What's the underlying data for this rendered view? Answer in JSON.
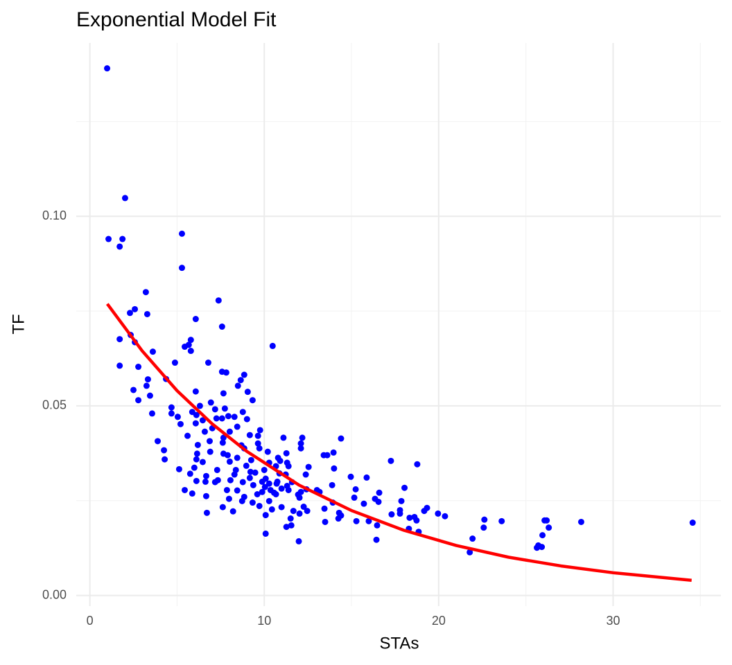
{
  "chart_data": {
    "type": "scatter",
    "title": "Exponential Model Fit",
    "x_label": "STAs",
    "y_label": "TF",
    "xlim": [
      -0.78,
      36.18
    ],
    "ylim": [
      -0.0028,
      0.1457
    ],
    "xticks": [
      0,
      10,
      20,
      30
    ],
    "yticks": [
      {
        "value": 0,
        "label": "0.00"
      },
      {
        "value": 0.05,
        "label": "0.05"
      },
      {
        "value": 0.1,
        "label": "0.10"
      }
    ],
    "x_minor_ticks": [
      5,
      15,
      25,
      35
    ],
    "y_minor_ticks": [
      0.025,
      0.075,
      0.125
    ],
    "grid": true,
    "points": {
      "color": "#0000ff",
      "x": [
        0.99,
        2.02,
        1.07,
        1.87,
        1.71,
        5.28,
        5.28,
        3.21,
        7.38,
        3.29,
        2.3,
        2.58,
        2.34,
        2.58,
        1.71,
        7.58,
        6.07,
        5.79,
        5.67,
        5.44,
        5.79,
        10.48,
        3.61,
        1.71,
        2.78,
        4.88,
        6.79,
        7.58,
        7.82,
        8.85,
        3.33,
        4.37,
        8.65,
        3.25,
        8.49,
        2.5,
        6.07,
        7.66,
        9.05,
        3.45,
        2.78,
        9.33,
        6.94,
        6.31,
        4.68,
        7.18,
        7.74,
        3.57,
        4.68,
        5.87,
        8.77,
        6.11,
        7.94,
        5.04,
        7.26,
        7.58,
        8.29,
        9.01,
        6.47,
        5.2,
        6.07,
        8.45,
        7.02,
        9.76,
        6.59,
        9.17,
        9.64,
        5.6,
        8.02,
        7.66,
        11.1,
        12.18,
        14.4,
        3.89,
        6.87,
        7.62,
        6.19,
        8.69,
        9.64,
        12.1,
        9.72,
        8.85,
        4.25,
        12.1,
        6.9,
        10.2,
        11.27,
        13.97,
        13.41,
        13.61,
        6.15,
        7.66,
        7.9,
        6.11,
        4.29,
        8.45,
        9.25,
        10.79,
        10.91,
        17.26,
        6.47,
        8.02,
        10.28,
        11.31,
        8.97,
        18.77,
        10.67,
        12.54,
        11.39,
        5.99,
        5.12,
        7.3,
        8.37,
        10.0,
        14.0,
        10.87,
        9.48,
        9.21,
        11.23,
        12.38,
        5.75,
        6.67,
        8.29,
        14.96,
        15.87,
        9.17,
        10.08,
        7.34,
        8.06,
        6.63,
        6.11,
        9.88,
        10.75,
        11.59,
        10.71,
        7.18,
        8.77,
        10.28,
        9.37,
        13.89,
        10.04,
        11.31,
        10.99,
        11.39,
        12.42,
        15.24,
        8.45,
        10.36,
        7.86,
        5.44,
        13.02,
        18.04,
        9.88,
        5.87,
        10.56,
        12.1,
        10.67,
        9.6,
        13.17,
        16.59,
        11.94,
        6.67,
        8.85,
        15.16,
        16.35,
        12.02,
        7.98,
        8.73,
        10.28,
        16.55,
        17.86,
        9.33,
        13.93,
        15.71,
        9.72,
        7.62,
        10.99,
        12.26,
        13.45,
        19.33,
        10.44,
        8.21,
        11.67,
        12.46,
        19.17,
        17.78,
        6.71,
        17.78,
        12.02,
        14.29,
        17.3,
        19.96,
        20.36,
        10.08,
        14.4,
        14.25,
        11.51,
        18.33,
        18.73,
        18.61,
        15.28,
        13.49,
        22.62,
        23.61,
        26.07,
        26.19,
        28.17,
        34.56,
        15.99,
        16.47,
        11.27,
        11.55,
        22.58,
        26.31,
        18.29,
        18.85,
        10.08,
        25.95,
        21.94,
        16.43,
        11.98,
        25.71,
        25.91,
        25.63,
        21.78
      ],
      "values": [
        0.139,
        0.1048,
        0.094,
        0.094,
        0.092,
        0.0954,
        0.0864,
        0.08,
        0.0778,
        0.0742,
        0.0745,
        0.0755,
        0.0687,
        0.0668,
        0.0676,
        0.0709,
        0.0729,
        0.0674,
        0.0661,
        0.0656,
        0.0645,
        0.0658,
        0.0643,
        0.0606,
        0.0603,
        0.0614,
        0.0614,
        0.059,
        0.0588,
        0.0582,
        0.057,
        0.0571,
        0.0568,
        0.0553,
        0.0553,
        0.0542,
        0.0538,
        0.0533,
        0.0537,
        0.0527,
        0.0515,
        0.0515,
        0.0509,
        0.05,
        0.0496,
        0.0491,
        0.0493,
        0.048,
        0.048,
        0.0484,
        0.0484,
        0.0476,
        0.0473,
        0.0471,
        0.0467,
        0.0467,
        0.0471,
        0.0465,
        0.0462,
        0.0452,
        0.0454,
        0.0445,
        0.0441,
        0.0436,
        0.0432,
        0.0423,
        0.0421,
        0.0421,
        0.0432,
        0.0416,
        0.0416,
        0.0416,
        0.0414,
        0.0407,
        0.0407,
        0.0403,
        0.0397,
        0.0396,
        0.0401,
        0.0401,
        0.0388,
        0.0388,
        0.0383,
        0.0388,
        0.0379,
        0.0379,
        0.0375,
        0.0377,
        0.037,
        0.037,
        0.0374,
        0.0374,
        0.037,
        0.0359,
        0.0359,
        0.0363,
        0.0357,
        0.0363,
        0.0355,
        0.0355,
        0.0352,
        0.0353,
        0.035,
        0.035,
        0.0342,
        0.0346,
        0.0341,
        0.0339,
        0.0341,
        0.0337,
        0.0333,
        0.0331,
        0.0331,
        0.0331,
        0.0335,
        0.0322,
        0.0324,
        0.0326,
        0.0319,
        0.0319,
        0.0321,
        0.0315,
        0.0319,
        0.0313,
        0.0311,
        0.031,
        0.0308,
        0.0304,
        0.0304,
        0.03,
        0.0302,
        0.03,
        0.03,
        0.0299,
        0.0295,
        0.0299,
        0.0299,
        0.0295,
        0.0291,
        0.0291,
        0.0286,
        0.0289,
        0.0282,
        0.0278,
        0.028,
        0.028,
        0.0277,
        0.0278,
        0.0278,
        0.0278,
        0.0278,
        0.0284,
        0.0273,
        0.0269,
        0.0271,
        0.0273,
        0.0267,
        0.0267,
        0.0273,
        0.0271,
        0.0266,
        0.0262,
        0.026,
        0.0258,
        0.0255,
        0.0258,
        0.0255,
        0.0249,
        0.0249,
        0.0247,
        0.0249,
        0.0245,
        0.0245,
        0.0242,
        0.0236,
        0.0233,
        0.0233,
        0.0234,
        0.0229,
        0.0231,
        0.0227,
        0.0222,
        0.0223,
        0.0223,
        0.0223,
        0.0225,
        0.0218,
        0.0216,
        0.0216,
        0.0218,
        0.0214,
        0.0216,
        0.0209,
        0.0212,
        0.0211,
        0.0203,
        0.0203,
        0.0205,
        0.0198,
        0.0207,
        0.0196,
        0.0194,
        0.02,
        0.0196,
        0.0198,
        0.0198,
        0.0194,
        0.0192,
        0.0196,
        0.0185,
        0.0181,
        0.0185,
        0.0179,
        0.0179,
        0.0176,
        0.0168,
        0.0163,
        0.0159,
        0.015,
        0.0147,
        0.0143,
        0.0132,
        0.0128,
        0.0126,
        0.0114
      ]
    },
    "fit": {
      "color": "#ff0000",
      "x": [
        1,
        3,
        5,
        7,
        9,
        12,
        15,
        18,
        21,
        24,
        27,
        30,
        34.5
      ],
      "values": [
        0.0769,
        0.0645,
        0.054,
        0.0453,
        0.038,
        0.0291,
        0.0224,
        0.0172,
        0.0132,
        0.0101,
        0.0078,
        0.006,
        0.004
      ]
    }
  }
}
